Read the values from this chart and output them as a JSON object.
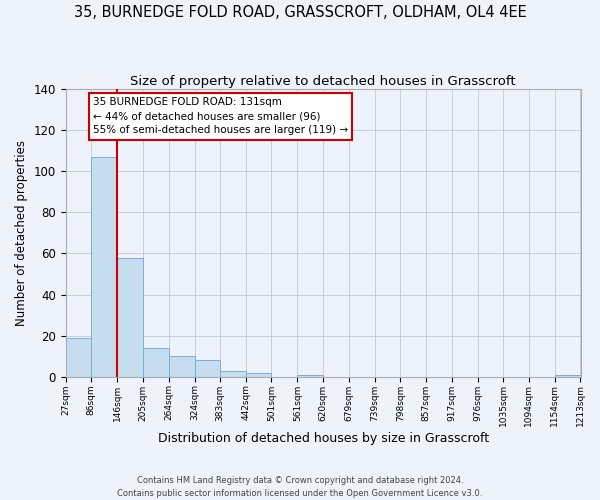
{
  "title": "35, BURNEDGE FOLD ROAD, GRASSCROFT, OLDHAM, OL4 4EE",
  "subtitle": "Size of property relative to detached houses in Grasscroft",
  "xlabel": "Distribution of detached houses by size in Grasscroft",
  "ylabel": "Number of detached properties",
  "bin_edges": [
    27,
    86,
    146,
    205,
    264,
    324,
    383,
    442,
    501,
    561,
    620,
    679,
    739,
    798,
    857,
    917,
    976,
    1035,
    1094,
    1154,
    1213
  ],
  "bin_labels": [
    "27sqm",
    "86sqm",
    "146sqm",
    "205sqm",
    "264sqm",
    "324sqm",
    "383sqm",
    "442sqm",
    "501sqm",
    "561sqm",
    "620sqm",
    "679sqm",
    "739sqm",
    "798sqm",
    "857sqm",
    "917sqm",
    "976sqm",
    "1035sqm",
    "1094sqm",
    "1154sqm",
    "1213sqm"
  ],
  "bar_heights": [
    19,
    107,
    58,
    14,
    10,
    8,
    3,
    2,
    0,
    1,
    0,
    0,
    0,
    0,
    0,
    0,
    0,
    0,
    0,
    1
  ],
  "bar_color": "#c6ddf0",
  "bar_edge_color": "#7aafd4",
  "vline_color": "#cc0000",
  "ylim": [
    0,
    140
  ],
  "yticks": [
    0,
    20,
    40,
    60,
    80,
    100,
    120,
    140
  ],
  "annotation_title": "35 BURNEDGE FOLD ROAD: 131sqm",
  "annotation_line1": "← 44% of detached houses are smaller (96)",
  "annotation_line2": "55% of semi-detached houses are larger (119) →",
  "annotation_box_color": "#ffffff",
  "annotation_box_edge": "#cc0000",
  "footer1": "Contains HM Land Registry data © Crown copyright and database right 2024.",
  "footer2": "Contains public sector information licensed under the Open Government Licence v3.0.",
  "background_color": "#eef3fb",
  "grid_color": "#c0c8d8",
  "title_fontsize": 10.5,
  "subtitle_fontsize": 9.5,
  "xlabel_fontsize": 9,
  "ylabel_fontsize": 8.5
}
